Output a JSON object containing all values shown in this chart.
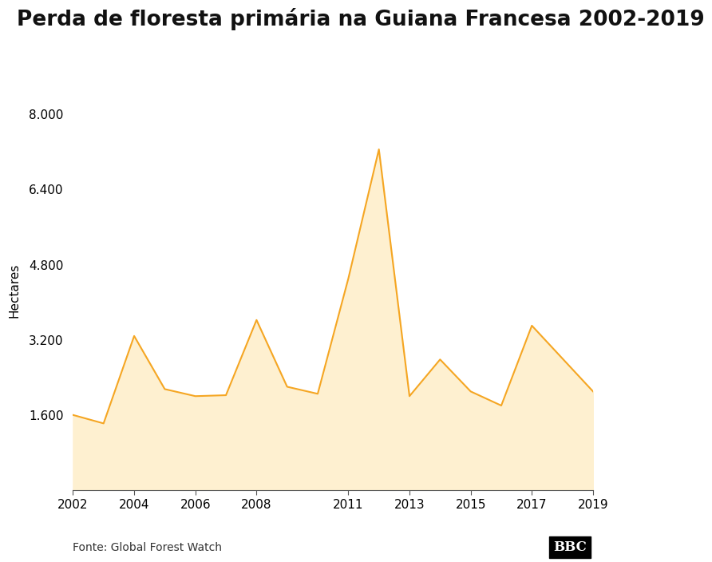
{
  "title": "Perda de floresta primária na Guiana Francesa 2002-2019",
  "ylabel": "Hectares",
  "source": "Fonte: Global Forest Watch",
  "bbc_label": "BBC",
  "years": [
    2002,
    2003,
    2004,
    2005,
    2006,
    2007,
    2008,
    2009,
    2010,
    2011,
    2012,
    2013,
    2014,
    2015,
    2016,
    2017,
    2018,
    2019
  ],
  "values": [
    1600,
    1420,
    3280,
    2150,
    2000,
    2020,
    3620,
    2200,
    2050,
    4500,
    7250,
    2000,
    2780,
    2100,
    1800,
    3500,
    2800,
    2100
  ],
  "line_color": "#F5A623",
  "fill_color": "#FEF0D0",
  "background_color": "#FFFFFF",
  "yticks": [
    0,
    1600,
    3200,
    4800,
    6400,
    8000
  ],
  "ylim": [
    0,
    8500
  ],
  "xlim": [
    2002,
    2019
  ],
  "xticks": [
    2002,
    2004,
    2006,
    2008,
    2011,
    2013,
    2015,
    2017,
    2019
  ],
  "title_fontsize": 19,
  "label_fontsize": 11,
  "tick_fontsize": 11,
  "source_fontsize": 10,
  "bbc_fontsize": 11
}
